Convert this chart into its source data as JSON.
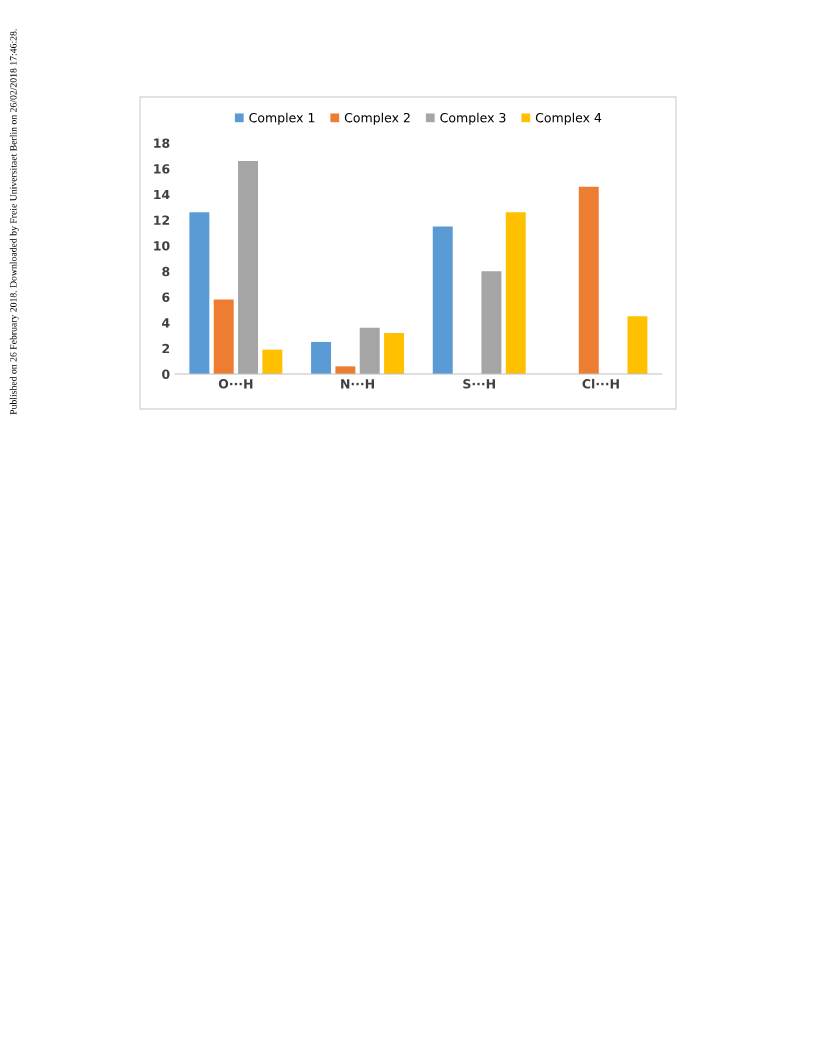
{
  "chart_data": {
    "type": "bar",
    "categories": [
      "O···H",
      "N···H",
      "S···H",
      "Cl···H"
    ],
    "series": [
      {
        "name": "Complex 1",
        "color": "#5b9bd5",
        "values": [
          12.6,
          2.5,
          11.5,
          null
        ]
      },
      {
        "name": "Complex 2",
        "color": "#ed7d31",
        "values": [
          5.8,
          0.6,
          null,
          14.6
        ]
      },
      {
        "name": "Complex 3",
        "color": "#a5a5a5",
        "values": [
          16.6,
          3.6,
          8.0,
          null
        ]
      },
      {
        "name": "Complex 4",
        "color": "#ffc000",
        "values": [
          1.9,
          3.2,
          12.6,
          4.5
        ]
      }
    ],
    "ylim": [
      0,
      18
    ],
    "yticks": [
      0,
      2,
      4,
      6,
      8,
      10,
      12,
      14,
      16,
      18
    ],
    "grid": false,
    "legend": "top",
    "annotations": [
      "Published on 26 February 2018. Downloaded by Freie Universitaet Berlin on 26/02/2018 17:46:28."
    ]
  }
}
